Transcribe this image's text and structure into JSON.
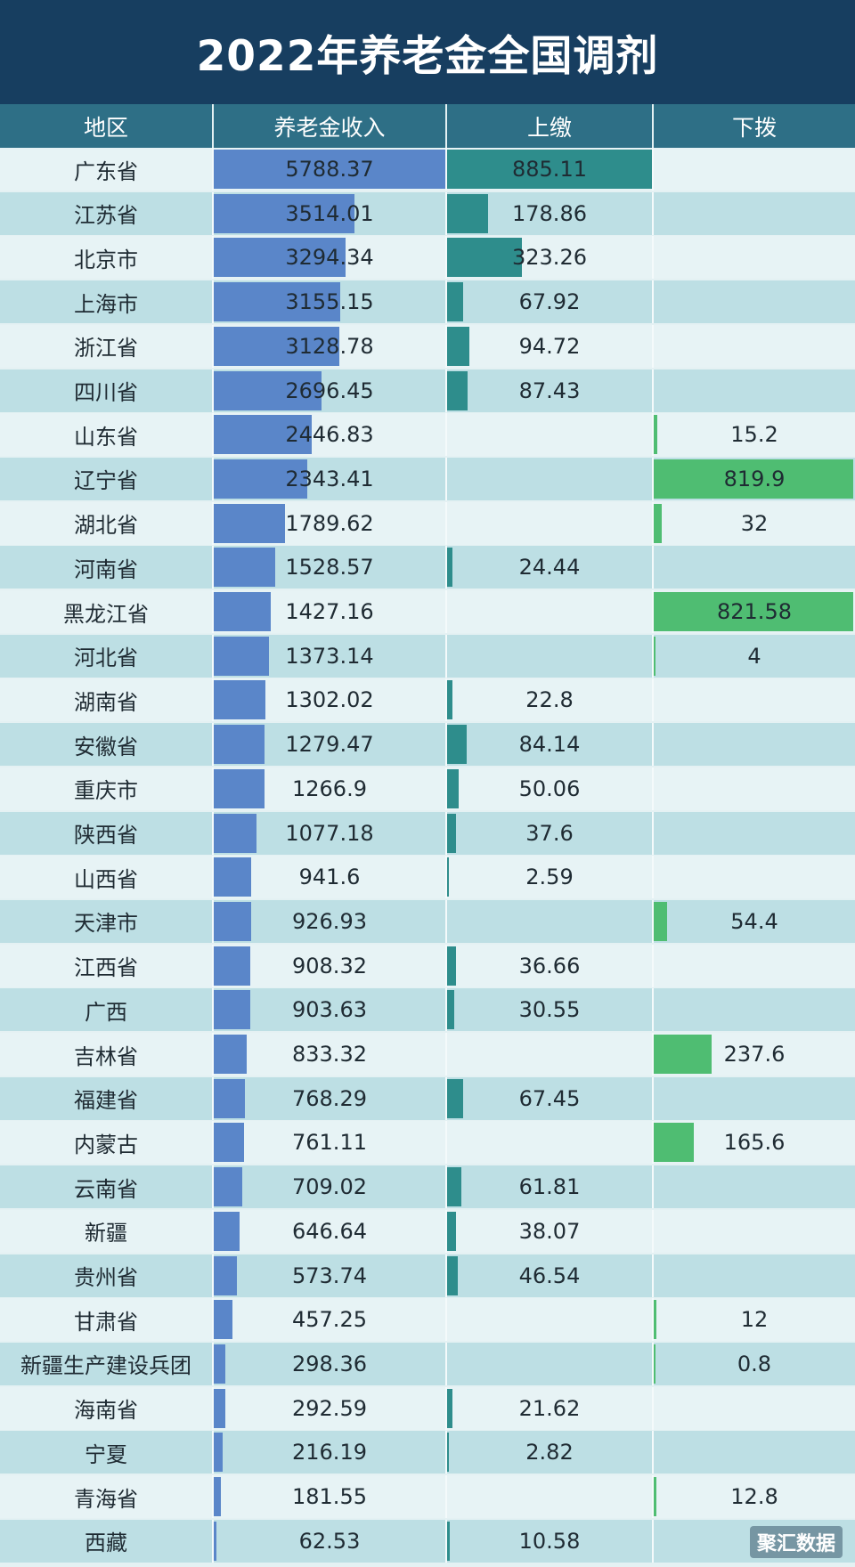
{
  "title": "2022年养老金全国调剂",
  "columns": [
    "地区",
    "养老金收入",
    "上缴",
    "下拨"
  ],
  "chart_data": {
    "type": "table",
    "title": "2022年养老金全国调剂",
    "columns": [
      "地区",
      "养老金收入",
      "上缴",
      "下拨"
    ],
    "max_values": {
      "income": 5788.37,
      "up": 885.11,
      "down": 821.58
    },
    "rows": [
      {
        "region": "广东省",
        "income": "5788.37",
        "up": "885.11",
        "down": ""
      },
      {
        "region": "江苏省",
        "income": "3514.01",
        "up": "178.86",
        "down": ""
      },
      {
        "region": "北京市",
        "income": "3294.34",
        "up": "323.26",
        "down": ""
      },
      {
        "region": "上海市",
        "income": "3155.15",
        "up": "67.92",
        "down": ""
      },
      {
        "region": "浙江省",
        "income": "3128.78",
        "up": "94.72",
        "down": ""
      },
      {
        "region": "四川省",
        "income": "2696.45",
        "up": "87.43",
        "down": ""
      },
      {
        "region": "山东省",
        "income": "2446.83",
        "up": "",
        "down": "15.2"
      },
      {
        "region": "辽宁省",
        "income": "2343.41",
        "up": "",
        "down": "819.9"
      },
      {
        "region": "湖北省",
        "income": "1789.62",
        "up": "",
        "down": "32"
      },
      {
        "region": "河南省",
        "income": "1528.57",
        "up": "24.44",
        "down": ""
      },
      {
        "region": "黑龙江省",
        "income": "1427.16",
        "up": "",
        "down": "821.58"
      },
      {
        "region": "河北省",
        "income": "1373.14",
        "up": "",
        "down": "4"
      },
      {
        "region": "湖南省",
        "income": "1302.02",
        "up": "22.8",
        "down": ""
      },
      {
        "region": "安徽省",
        "income": "1279.47",
        "up": "84.14",
        "down": ""
      },
      {
        "region": "重庆市",
        "income": "1266.9",
        "up": "50.06",
        "down": ""
      },
      {
        "region": "陕西省",
        "income": "1077.18",
        "up": "37.6",
        "down": ""
      },
      {
        "region": "山西省",
        "income": "941.6",
        "up": "2.59",
        "down": ""
      },
      {
        "region": "天津市",
        "income": "926.93",
        "up": "",
        "down": "54.4"
      },
      {
        "region": "江西省",
        "income": "908.32",
        "up": "36.66",
        "down": ""
      },
      {
        "region": "广西",
        "income": "903.63",
        "up": "30.55",
        "down": ""
      },
      {
        "region": "吉林省",
        "income": "833.32",
        "up": "",
        "down": "237.6"
      },
      {
        "region": "福建省",
        "income": "768.29",
        "up": "67.45",
        "down": ""
      },
      {
        "region": "内蒙古",
        "income": "761.11",
        "up": "",
        "down": "165.6"
      },
      {
        "region": "云南省",
        "income": "709.02",
        "up": "61.81",
        "down": ""
      },
      {
        "region": "新疆",
        "income": "646.64",
        "up": "38.07",
        "down": ""
      },
      {
        "region": "贵州省",
        "income": "573.74",
        "up": "46.54",
        "down": ""
      },
      {
        "region": "甘肃省",
        "income": "457.25",
        "up": "",
        "down": "12"
      },
      {
        "region": "新疆生产建设兵团",
        "income": "298.36",
        "up": "",
        "down": "0.8"
      },
      {
        "region": "海南省",
        "income": "292.59",
        "up": "21.62",
        "down": ""
      },
      {
        "region": "宁夏",
        "income": "216.19",
        "up": "2.82",
        "down": ""
      },
      {
        "region": "青海省",
        "income": "181.55",
        "up": "",
        "down": "12.8"
      },
      {
        "region": "西藏",
        "income": "62.53",
        "up": "10.58",
        "down": ""
      }
    ]
  },
  "brand": "聚汇数据",
  "colors": {
    "title_bg": "#173e60",
    "header_bg": "#2e6f86",
    "income_bar": "#5a86c9",
    "up_bar": "#2e8d8c",
    "down_bar": "#4fbd72"
  }
}
